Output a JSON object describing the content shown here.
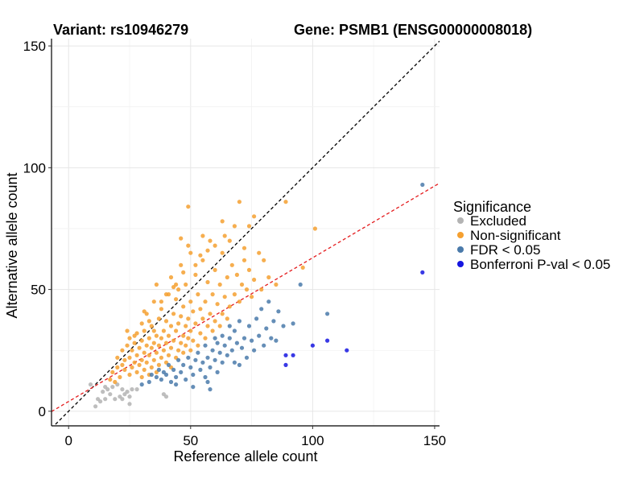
{
  "chart_data": {
    "type": "scatter",
    "title_left": "Variant: rs10946279",
    "title_right": "Gene: PSMB1 (ENSG00000008018)",
    "xlabel": "Reference allele count",
    "ylabel": "Alternative allele count",
    "xlim": [
      -7,
      152
    ],
    "ylim": [
      -6,
      153
    ],
    "xticks": [
      0,
      50,
      100,
      150
    ],
    "yticks": [
      0,
      50,
      100,
      150
    ],
    "xtick_labels": [
      "0",
      "50",
      "100",
      "150"
    ],
    "ytick_labels": [
      "0",
      "50",
      "100",
      "150"
    ],
    "grid": true,
    "reference_lines": [
      {
        "name": "identity",
        "slope": 1,
        "intercept": 0,
        "color": "#000000",
        "style": "dashed"
      },
      {
        "name": "fit",
        "slope": 0.59,
        "intercept": 4,
        "color": "#e41a1c",
        "style": "dashed"
      }
    ],
    "legend": {
      "title": "Significance",
      "position": "right",
      "entries": [
        {
          "label": "Excluded",
          "color": "#b3b3b3"
        },
        {
          "label": "Non-significant",
          "color": "#f5a030"
        },
        {
          "label": "FDR < 0.05",
          "color": "#4a7aaa"
        },
        {
          "label": "Bonferroni P-val < 0.05",
          "color": "#1616e0"
        }
      ]
    },
    "series": [
      {
        "name": "Excluded",
        "color": "#b3b3b3",
        "points": [
          [
            9,
            11
          ],
          [
            11,
            2
          ],
          [
            12,
            5
          ],
          [
            13,
            4
          ],
          [
            14,
            8
          ],
          [
            15,
            5
          ],
          [
            16,
            9
          ],
          [
            17,
            7
          ],
          [
            19,
            5
          ],
          [
            20,
            11
          ],
          [
            21,
            6
          ],
          [
            22,
            5
          ],
          [
            23,
            7
          ],
          [
            24,
            8
          ],
          [
            25,
            3
          ],
          [
            25,
            6
          ],
          [
            26,
            9
          ],
          [
            39,
            7
          ],
          [
            40,
            6
          ],
          [
            18,
            10
          ],
          [
            15,
            10
          ],
          [
            28,
            9
          ],
          [
            22,
            9
          ]
        ]
      },
      {
        "name": "Non-significant",
        "color": "#f5a030",
        "points": [
          [
            17,
            13
          ],
          [
            18,
            16
          ],
          [
            19,
            12
          ],
          [
            20,
            18
          ],
          [
            21,
            14
          ],
          [
            22,
            19
          ],
          [
            22,
            25
          ],
          [
            23,
            17
          ],
          [
            23,
            21
          ],
          [
            24,
            27
          ],
          [
            24,
            33
          ],
          [
            25,
            15
          ],
          [
            25,
            22
          ],
          [
            25,
            30
          ],
          [
            26,
            18
          ],
          [
            26,
            25
          ],
          [
            27,
            20
          ],
          [
            27,
            28
          ],
          [
            28,
            16
          ],
          [
            28,
            23
          ],
          [
            28,
            32
          ],
          [
            29,
            19
          ],
          [
            29,
            26
          ],
          [
            30,
            14
          ],
          [
            30,
            21
          ],
          [
            30,
            29
          ],
          [
            30,
            36
          ],
          [
            31,
            17
          ],
          [
            31,
            24
          ],
          [
            31,
            33
          ],
          [
            32,
            20
          ],
          [
            32,
            27
          ],
          [
            32,
            40
          ],
          [
            33,
            15
          ],
          [
            33,
            23
          ],
          [
            33,
            30
          ],
          [
            34,
            18
          ],
          [
            34,
            26
          ],
          [
            34,
            35
          ],
          [
            35,
            21
          ],
          [
            35,
            28
          ],
          [
            35,
            45
          ],
          [
            36,
            16
          ],
          [
            36,
            24
          ],
          [
            36,
            31
          ],
          [
            36,
            52
          ],
          [
            37,
            19
          ],
          [
            37,
            27
          ],
          [
            37,
            38
          ],
          [
            38,
            22
          ],
          [
            38,
            30
          ],
          [
            38,
            42
          ],
          [
            39,
            25
          ],
          [
            39,
            33
          ],
          [
            40,
            20
          ],
          [
            40,
            28
          ],
          [
            40,
            37
          ],
          [
            40,
            48
          ],
          [
            41,
            23
          ],
          [
            41,
            31
          ],
          [
            42,
            18
          ],
          [
            42,
            26
          ],
          [
            42,
            35
          ],
          [
            42,
            55
          ],
          [
            43,
            29
          ],
          [
            43,
            40
          ],
          [
            44,
            22
          ],
          [
            44,
            33
          ],
          [
            44,
            46
          ],
          [
            45,
            25
          ],
          [
            45,
            36
          ],
          [
            45,
            50
          ],
          [
            46,
            28
          ],
          [
            46,
            39
          ],
          [
            46,
            60
          ],
          [
            47,
            24
          ],
          [
            47,
            31
          ],
          [
            47,
            43
          ],
          [
            48,
            27
          ],
          [
            48,
            35
          ],
          [
            48,
            52
          ],
          [
            49,
            84
          ],
          [
            49,
            30
          ],
          [
            49,
            38
          ],
          [
            50,
            25
          ],
          [
            50,
            33
          ],
          [
            50,
            45
          ],
          [
            50,
            65
          ],
          [
            51,
            29
          ],
          [
            51,
            41
          ],
          [
            52,
            36
          ],
          [
            52,
            56
          ],
          [
            53,
            27
          ],
          [
            53,
            48
          ],
          [
            54,
            32
          ],
          [
            54,
            42
          ],
          [
            55,
            38
          ],
          [
            55,
            62
          ],
          [
            56,
            30
          ],
          [
            56,
            45
          ],
          [
            57,
            35
          ],
          [
            57,
            53
          ],
          [
            58,
            40
          ],
          [
            58,
            70
          ],
          [
            59,
            33
          ],
          [
            59,
            48
          ],
          [
            60,
            37
          ],
          [
            60,
            58
          ],
          [
            61,
            44
          ],
          [
            62,
            35
          ],
          [
            62,
            52
          ],
          [
            63,
            40
          ],
          [
            63,
            65
          ],
          [
            64,
            47
          ],
          [
            65,
            38
          ],
          [
            65,
            55
          ],
          [
            66,
            43
          ],
          [
            67,
            60
          ],
          [
            68,
            48
          ],
          [
            69,
            56
          ],
          [
            70,
            86
          ],
          [
            70,
            45
          ],
          [
            71,
            52
          ],
          [
            72,
            62
          ],
          [
            73,
            50
          ],
          [
            74,
            58
          ],
          [
            75,
            47
          ],
          [
            76,
            80
          ],
          [
            76,
            54
          ],
          [
            78,
            65
          ],
          [
            79,
            50
          ],
          [
            82,
            55
          ],
          [
            85,
            52
          ],
          [
            89,
            86
          ],
          [
            96,
            59
          ],
          [
            101,
            75
          ],
          [
            20,
            22
          ],
          [
            27,
            31
          ],
          [
            33,
            37
          ],
          [
            38,
            45
          ],
          [
            44,
            52
          ],
          [
            52,
            60
          ],
          [
            57,
            66
          ],
          [
            64,
            72
          ],
          [
            68,
            76
          ],
          [
            72,
            67
          ],
          [
            80,
            62
          ],
          [
            35,
            33
          ],
          [
            41,
            48
          ],
          [
            47,
            57
          ],
          [
            54,
            64
          ],
          [
            60,
            68
          ],
          [
            66,
            70
          ],
          [
            74,
            76
          ],
          [
            31,
            41
          ],
          [
            43,
            51
          ],
          [
            55,
            72
          ],
          [
            63,
            78
          ],
          [
            49,
            68
          ],
          [
            46,
            71
          ]
        ]
      },
      {
        "name": "FDR < 0.05",
        "color": "#4a7aaa",
        "points": [
          [
            30,
            11
          ],
          [
            33,
            12
          ],
          [
            34,
            15
          ],
          [
            36,
            14
          ],
          [
            37,
            17
          ],
          [
            38,
            13
          ],
          [
            39,
            16
          ],
          [
            40,
            15
          ],
          [
            41,
            19
          ],
          [
            42,
            12
          ],
          [
            43,
            17
          ],
          [
            44,
            14
          ],
          [
            45,
            21
          ],
          [
            46,
            16
          ],
          [
            47,
            19
          ],
          [
            48,
            13
          ],
          [
            49,
            22
          ],
          [
            50,
            18
          ],
          [
            51,
            15
          ],
          [
            52,
            21
          ],
          [
            53,
            24
          ],
          [
            54,
            17
          ],
          [
            55,
            20
          ],
          [
            56,
            14
          ],
          [
            56,
            27
          ],
          [
            57,
            22
          ],
          [
            58,
            18
          ],
          [
            59,
            25
          ],
          [
            60,
            21
          ],
          [
            60,
            30
          ],
          [
            61,
            16
          ],
          [
            61,
            28
          ],
          [
            62,
            24
          ],
          [
            63,
            20
          ],
          [
            63,
            31
          ],
          [
            64,
            27
          ],
          [
            65,
            23
          ],
          [
            66,
            30
          ],
          [
            66,
            35
          ],
          [
            67,
            25
          ],
          [
            68,
            20
          ],
          [
            68,
            33
          ],
          [
            69,
            28
          ],
          [
            70,
            19
          ],
          [
            70,
            37
          ],
          [
            71,
            26
          ],
          [
            72,
            30
          ],
          [
            73,
            22
          ],
          [
            74,
            35
          ],
          [
            75,
            29
          ],
          [
            76,
            25
          ],
          [
            77,
            38
          ],
          [
            78,
            31
          ],
          [
            79,
            42
          ],
          [
            80,
            27
          ],
          [
            81,
            34
          ],
          [
            82,
            45
          ],
          [
            83,
            30
          ],
          [
            84,
            37
          ],
          [
            85,
            29
          ],
          [
            86,
            41
          ],
          [
            88,
            35
          ],
          [
            92,
            36
          ],
          [
            95,
            52
          ],
          [
            106,
            40
          ],
          [
            145,
            93
          ],
          [
            44,
            11
          ],
          [
            51,
            10
          ],
          [
            57,
            12
          ],
          [
            58,
            9
          ]
        ]
      },
      {
        "name": "Bonferroni P-val < 0.05",
        "color": "#1616e0",
        "points": [
          [
            89,
            19
          ],
          [
            89,
            23
          ],
          [
            92,
            23
          ],
          [
            100,
            27
          ],
          [
            106,
            29
          ],
          [
            114,
            25
          ],
          [
            145,
            57
          ]
        ]
      }
    ]
  }
}
